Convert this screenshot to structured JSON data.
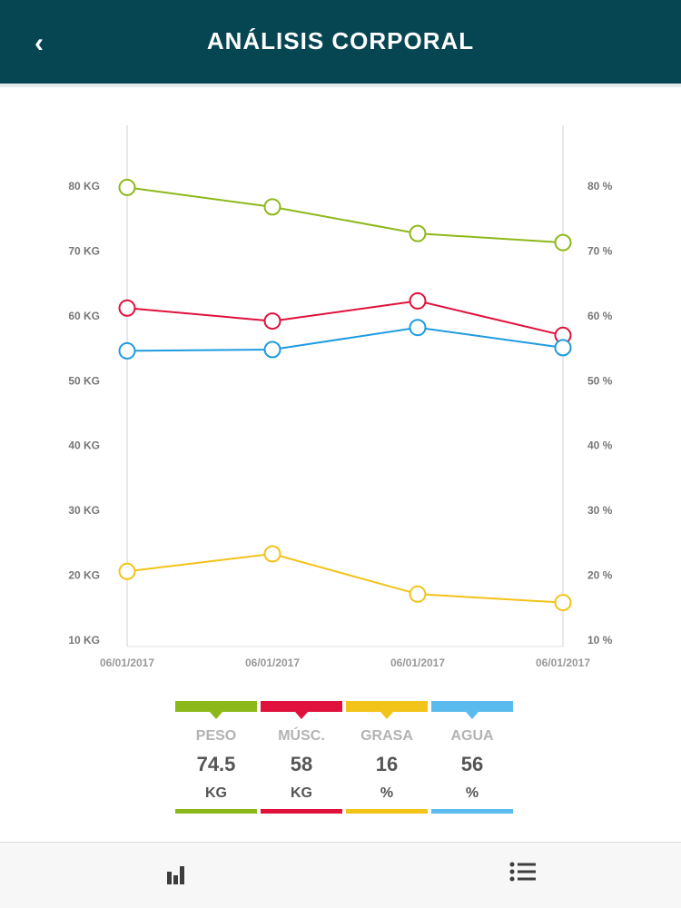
{
  "header": {
    "back_icon": "chevron-left-icon",
    "back_glyph": "‹",
    "title": "ANÁLISIS CORPORAL"
  },
  "chart_data": {
    "type": "line",
    "x": [
      "06/01/2017",
      "06/01/2017",
      "06/01/2017",
      "06/01/2017"
    ],
    "y_left_ticks": [
      "80 KG",
      "70 KG",
      "60 KG",
      "50 KG",
      "40 KG",
      "30 KG",
      "20 KG",
      "10 KG"
    ],
    "y_right_ticks": [
      "80 %",
      "70 %",
      "60 %",
      "50 %",
      "40 %",
      "30 %",
      "20 %",
      "10 %"
    ],
    "ylim": [
      10,
      80
    ],
    "grid": false,
    "series": [
      {
        "key": "peso",
        "color": "#8db819",
        "values": [
          79.8,
          76.8,
          72.7,
          71.3
        ]
      },
      {
        "key": "musc",
        "color": "#e0113c",
        "values": [
          61.2,
          59.2,
          62.3,
          57.0
        ]
      },
      {
        "key": "agua",
        "color": "#1e9be0",
        "values": [
          54.6,
          54.8,
          58.2,
          55.1
        ]
      },
      {
        "key": "grasa",
        "color": "#f2c318",
        "values": [
          20.6,
          23.3,
          17.1,
          15.8
        ]
      }
    ]
  },
  "legend": [
    {
      "name": "PESO",
      "value": "74.5",
      "unit": "KG",
      "color": "#8db819"
    },
    {
      "name": "MÚSC.",
      "value": "58",
      "unit": "KG",
      "color": "#e0113c"
    },
    {
      "name": "GRASA",
      "value": "16",
      "unit": "%",
      "color": "#f2c318"
    },
    {
      "name": "AGUA",
      "value": "56",
      "unit": "%",
      "color": "#5bbbef"
    }
  ],
  "bottom_bar": {
    "chart_icon": "bar-chart-icon",
    "list_icon": "list-icon",
    "icon_color": "#3d3d3d"
  }
}
